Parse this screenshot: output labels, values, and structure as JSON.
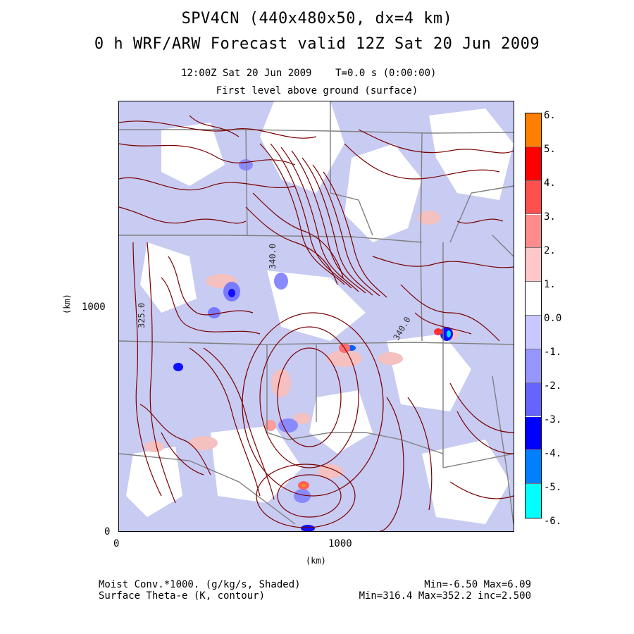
{
  "header": {
    "title_line1": "SPV4CN (440x480x50, dx=4 km)",
    "title_line2": "0 h WRF/ARW Forecast valid 12Z Sat 20 Jun 2009",
    "valid_time": "12:00Z Sat 20 Jun 2009",
    "elapsed": "T=0.0 s (0:00:00)",
    "level": "First level above ground (surface)"
  },
  "axes": {
    "x_unit": "(km)",
    "y_unit": "(km)",
    "x_ticks": [
      "0",
      "1000"
    ],
    "y_ticks": [
      "0",
      "1000"
    ]
  },
  "contour_labels": [
    "325.0",
    "340.0",
    "340.0"
  ],
  "colorbar": {
    "labels": [
      "6.",
      "5.",
      "4.",
      "3.",
      "2.",
      "1.",
      "0.0",
      "-1.",
      "-2.",
      "-3.",
      "-4.",
      "-5.",
      "-6."
    ],
    "colors": [
      "#ff8000",
      "#ff0000",
      "#ff5050",
      "#ff8c8c",
      "#ffc8c8",
      "#ffffff",
      "#ffffff",
      "#c8c8ff",
      "#9696ff",
      "#6464ff",
      "#0000ff",
      "#0080ff",
      "#00ffff"
    ]
  },
  "footer": {
    "field1": "Moist Conv.*1000. (g/kg/s, Shaded)",
    "field2": "Surface Theta-e (K, contour)",
    "stats1": "Min=-6.50 Max=6.09",
    "stats2": "Min=316.4 Max=352.2 inc=2.500"
  },
  "colors": {
    "background_shade": "#c8cbf2",
    "contour": "#7a0000",
    "borders": "#808080"
  }
}
